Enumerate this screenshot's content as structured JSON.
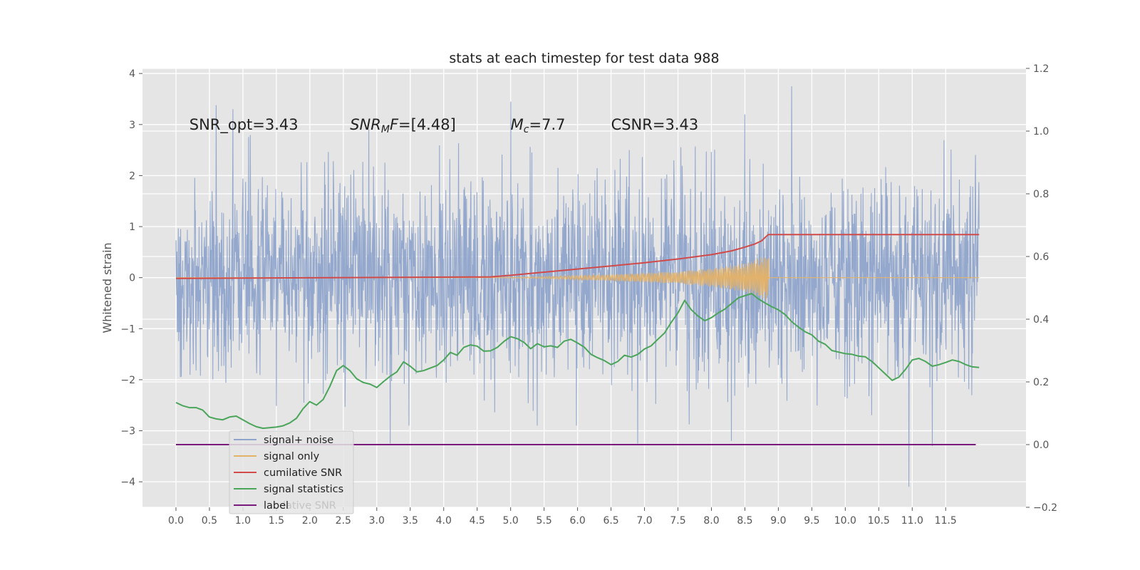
{
  "chart_data": {
    "type": "line",
    "title": "stats at each timestep for test data 988",
    "ylabel": "Whitened strain",
    "xlim": [
      -0.5,
      12.7
    ],
    "ylim": [
      -4.5,
      4.1
    ],
    "y2lim": [
      -0.2,
      1.2
    ],
    "grid": true,
    "legend_placement": "lower-left",
    "x_ticks": [
      "0.0",
      "0.5",
      "1.0",
      "1.5",
      "2.0",
      "2.5",
      "3.0",
      "3.5",
      "4.0",
      "4.5",
      "5.0",
      "5.5",
      "6.0",
      "6.5",
      "7.0",
      "7.5",
      "8.0",
      "8.5",
      "9.0",
      "9.5",
      "10.0",
      "10.5",
      "11.0",
      "11.5"
    ],
    "y_ticks": [
      "4",
      "3",
      "2",
      "1",
      "0",
      "−1",
      "−2",
      "−3",
      "−4"
    ],
    "y2_ticks": [
      "1.2",
      "1.0",
      "0.8",
      "0.6",
      "0.4",
      "0.2",
      "0.0",
      "−0.2"
    ],
    "annotations": [
      {
        "x": 0.2,
        "y": 2.9,
        "parts": [
          {
            "t": "SNR_opt=3.43",
            "s": "normal"
          }
        ]
      },
      {
        "x": 2.6,
        "y": 2.9,
        "parts": [
          {
            "t": "SNR",
            "s": "italic"
          },
          {
            "t": "M",
            "s": "italic-sub"
          },
          {
            "t": "F",
            "s": "italic"
          },
          {
            "t": "=[4.48]",
            "s": "normal"
          }
        ]
      },
      {
        "x": 5.0,
        "y": 2.9,
        "parts": [
          {
            "t": "M",
            "s": "italic"
          },
          {
            "t": "c",
            "s": "italic-sub"
          },
          {
            "t": "=7.7",
            "s": "normal"
          }
        ]
      },
      {
        "x": 6.5,
        "y": 2.9,
        "parts": [
          {
            "t": "CSNR=3.43",
            "s": "normal"
          }
        ]
      }
    ],
    "series": [
      {
        "name": "signal+ noise",
        "color": "#8fa4cb",
        "axis": "left",
        "kind": "noise",
        "x_range": [
          0.0,
          12.0
        ],
        "sample_count": 2400,
        "sigma": 0.95,
        "notable_values": [
          [
            0.6,
            3.38
          ],
          [
            0.85,
            3.3
          ],
          [
            5.0,
            3.45
          ],
          [
            8.5,
            3.2
          ],
          [
            9.2,
            3.75
          ],
          [
            3.2,
            -3.25
          ],
          [
            6.9,
            -3.25
          ],
          [
            8.3,
            -3.2
          ],
          [
            10.95,
            -4.1
          ],
          [
            11.3,
            -3.3
          ]
        ]
      },
      {
        "name": "signal only",
        "color": "#e3b26a",
        "axis": "left",
        "kind": "chirp",
        "x": [
          0.0,
          4.7,
          5.5,
          6.5,
          7.5,
          8.0,
          8.5,
          8.75,
          8.85,
          8.86,
          12.0
        ],
        "amplitude": [
          0.0,
          0.0,
          0.02,
          0.06,
          0.12,
          0.18,
          0.28,
          0.4,
          0.45,
          0.0,
          0.0
        ]
      },
      {
        "name": "cumilative SNR",
        "color": "#d04a4a",
        "axis": "right",
        "x": [
          0.0,
          4.7,
          5.0,
          5.5,
          6.0,
          6.5,
          7.0,
          7.5,
          8.0,
          8.3,
          8.5,
          8.65,
          8.75,
          8.85,
          12.0
        ],
        "values": [
          0.53,
          0.535,
          0.54,
          0.55,
          0.56,
          0.57,
          0.58,
          0.592,
          0.606,
          0.618,
          0.63,
          0.64,
          0.65,
          0.67,
          0.67
        ]
      },
      {
        "name": "signal statistics",
        "color": "#4aa55a",
        "axis": "right",
        "x": [
          0.0,
          0.1,
          0.2,
          0.3,
          0.4,
          0.5,
          0.6,
          0.7,
          0.8,
          0.9,
          1.0,
          1.1,
          1.2,
          1.3,
          1.4,
          1.5,
          1.6,
          1.7,
          1.8,
          1.9,
          2.0,
          2.1,
          2.2,
          2.3,
          2.4,
          2.5,
          2.6,
          2.7,
          2.8,
          2.9,
          3.0,
          3.1,
          3.2,
          3.3,
          3.4,
          3.5,
          3.6,
          3.7,
          3.8,
          3.9,
          4.0,
          4.1,
          4.2,
          4.3,
          4.4,
          4.5,
          4.6,
          4.7,
          4.8,
          4.9,
          5.0,
          5.1,
          5.2,
          5.3,
          5.4,
          5.5,
          5.6,
          5.7,
          5.8,
          5.9,
          6.0,
          6.1,
          6.2,
          6.3,
          6.4,
          6.5,
          6.6,
          6.7,
          6.8,
          6.9,
          7.0,
          7.1,
          7.2,
          7.3,
          7.4,
          7.5,
          7.6,
          7.7,
          7.8,
          7.9,
          8.0,
          8.1,
          8.2,
          8.3,
          8.4,
          8.5,
          8.6,
          8.7,
          8.8,
          8.9,
          9.0,
          9.1,
          9.2,
          9.3,
          9.4,
          9.5,
          9.6,
          9.7,
          9.8,
          9.9,
          10.0,
          10.1,
          10.2,
          10.3,
          10.4,
          10.5,
          10.6,
          10.7,
          10.8,
          10.9,
          11.0,
          11.1,
          11.2,
          11.3,
          11.4,
          11.5,
          11.6,
          11.7,
          11.8,
          11.9,
          12.0
        ],
        "values": [
          0.134,
          0.124,
          0.118,
          0.118,
          0.11,
          0.088,
          0.082,
          0.079,
          0.088,
          0.091,
          0.079,
          0.067,
          0.057,
          0.052,
          0.054,
          0.056,
          0.06,
          0.069,
          0.084,
          0.115,
          0.137,
          0.126,
          0.144,
          0.186,
          0.236,
          0.252,
          0.236,
          0.21,
          0.198,
          0.193,
          0.182,
          0.201,
          0.218,
          0.232,
          0.264,
          0.25,
          0.232,
          0.236,
          0.244,
          0.252,
          0.27,
          0.294,
          0.285,
          0.31,
          0.318,
          0.314,
          0.298,
          0.299,
          0.31,
          0.329,
          0.344,
          0.338,
          0.326,
          0.306,
          0.322,
          0.312,
          0.315,
          0.31,
          0.33,
          0.336,
          0.324,
          0.311,
          0.288,
          0.277,
          0.268,
          0.255,
          0.265,
          0.285,
          0.279,
          0.288,
          0.305,
          0.315,
          0.336,
          0.356,
          0.39,
          0.42,
          0.46,
          0.43,
          0.41,
          0.395,
          0.405,
          0.42,
          0.432,
          0.45,
          0.468,
          0.475,
          0.482,
          0.465,
          0.452,
          0.44,
          0.43,
          0.415,
          0.392,
          0.375,
          0.36,
          0.35,
          0.33,
          0.32,
          0.3,
          0.295,
          0.29,
          0.288,
          0.282,
          0.28,
          0.265,
          0.245,
          0.225,
          0.205,
          0.215,
          0.24,
          0.27,
          0.275,
          0.265,
          0.25,
          0.255,
          0.262,
          0.27,
          0.265,
          0.255,
          0.248,
          0.246
        ]
      },
      {
        "name": "label",
        "color": "#7a1a7e",
        "axis": "right",
        "x": [
          0.0,
          11.95
        ],
        "values": [
          0.0,
          0.0
        ]
      }
    ],
    "legend": {
      "entries": [
        "signal+ noise",
        "signal only",
        "cumilative SNR",
        "signal statistics",
        "label"
      ],
      "overlapped_text": "lative SNR"
    }
  }
}
